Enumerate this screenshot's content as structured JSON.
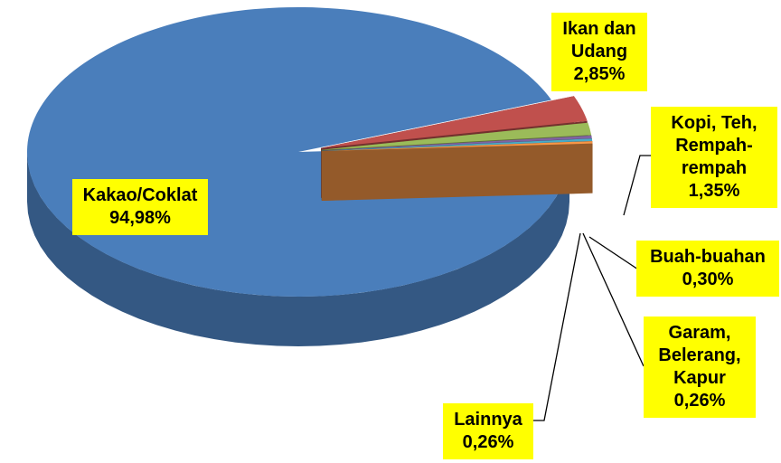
{
  "chart_data": {
    "type": "pie",
    "categories": [
      "Kakao/Coklat",
      "Ikan dan Udang",
      "Kopi, Teh, Rempah-rempah",
      "Buah-buahan",
      "Garam, Belerang, Kapur",
      "Lainnya"
    ],
    "values": [
      94.98,
      2.85,
      1.35,
      0.3,
      0.26,
      0.26
    ],
    "value_labels": [
      "94,98%",
      "2,85%",
      "1,35%",
      "0,30%",
      "0,26%",
      "0,26%"
    ],
    "colors": [
      "#4a7ebb",
      "#c0504d",
      "#9bbb59",
      "#8064a2",
      "#4bacc6",
      "#f79646"
    ]
  }
}
